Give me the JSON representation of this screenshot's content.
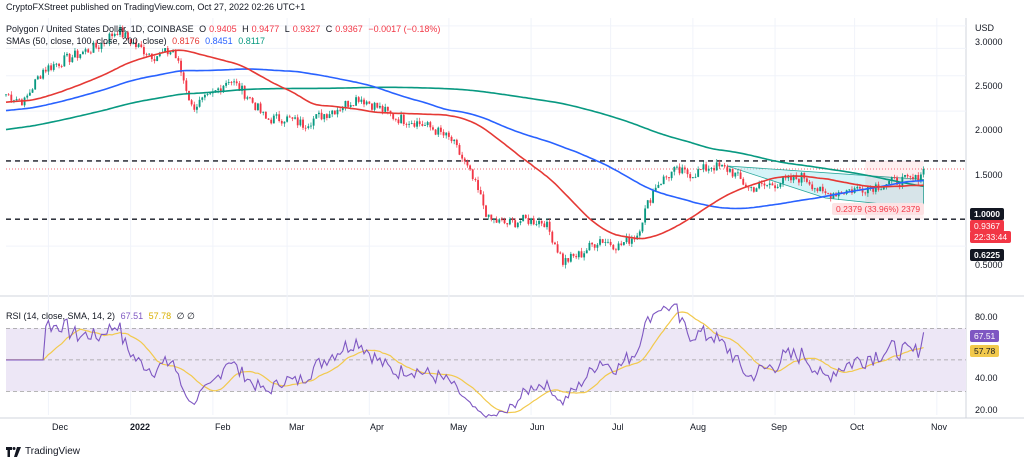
{
  "publisher_line": "CryptoFXStreet published on TradingView.com, Oct 27, 2022 02:26 UTC+1",
  "header": {
    "symbol_line": "Polygon / United States Dollar, 1D, COINBASE",
    "ohlc": {
      "open_label": "O",
      "open": "0.9405",
      "high_label": "H",
      "high": "0.9477",
      "low_label": "L",
      "low": "0.9327",
      "close_label": "C",
      "close": "0.9367",
      "change": "−0.0017 (−0.18%)"
    },
    "sma_line": "SMAs (50, close, 100, close, 200, close)",
    "sma_values": [
      "0.8176",
      "0.8451",
      "0.8117"
    ],
    "rsi_line": "RSI (14, close, SMA, 14, 2)",
    "rsi_values": [
      "67.51",
      "57.78"
    ],
    "rsi_tail": "∅ ∅"
  },
  "currency": "USD",
  "price_axis_labels": [
    "3.0000",
    "2.5000",
    "2.0000",
    "1.5000",
    "1.0000",
    "0.5000"
  ],
  "rsi_axis_labels": [
    "80.00",
    "40.00",
    "20.00"
  ],
  "markers": {
    "level_top": "1.0000",
    "price_current": "0.9367",
    "countdown": "22:33:44",
    "level_bottom": "0.6225",
    "measure": "0.2379 (33.96%) 2379",
    "rsi_current": "67.51",
    "rsi_sma_current": "57.78"
  },
  "time_labels": [
    "Dec",
    "2022",
    "Feb",
    "Mar",
    "Apr",
    "May",
    "Jun",
    "Jul",
    "Aug",
    "Sep",
    "Oct",
    "Nov"
  ],
  "footer": {
    "brand": "TradingView"
  },
  "colors": {
    "up": "#089981",
    "down": "#f23645",
    "sma50": "#e53935",
    "sma100": "#2962ff",
    "sma200": "#089981",
    "rsi": "#7e57c2",
    "rsi_sma": "#f2c94c",
    "rsi_band": "#ede7f6",
    "triangle_fill": "#b2ebf2"
  },
  "chart_data": [
    {
      "type": "candlestick",
      "title": "Polygon / United States Dollar, 1D, COINBASE",
      "ylabel": "USD",
      "y_scale": "log",
      "ylim": [
        0.35,
        3.2
      ],
      "x_range": [
        "2021-11-15",
        "2022-11-12"
      ],
      "x_tick_labels": [
        "Dec",
        "2022",
        "Feb",
        "Mar",
        "Apr",
        "May",
        "Jun",
        "Jul",
        "Aug",
        "Sep",
        "Oct",
        "Nov"
      ],
      "grid": true,
      "candles_note": "representative daily closes (approximate)",
      "closes": [
        {
          "date": "2021-11-15",
          "c": 1.72
        },
        {
          "date": "2021-11-22",
          "c": 1.62
        },
        {
          "date": "2021-11-29",
          "c": 2.1
        },
        {
          "date": "2021-12-06",
          "c": 2.25
        },
        {
          "date": "2021-12-13",
          "c": 2.4
        },
        {
          "date": "2021-12-20",
          "c": 2.55
        },
        {
          "date": "2021-12-27",
          "c": 2.9
        },
        {
          "date": "2022-01-03",
          "c": 2.55
        },
        {
          "date": "2022-01-10",
          "c": 2.35
        },
        {
          "date": "2022-01-17",
          "c": 2.45
        },
        {
          "date": "2022-01-24",
          "c": 1.55
        },
        {
          "date": "2022-01-31",
          "c": 1.68
        },
        {
          "date": "2022-02-07",
          "c": 1.95
        },
        {
          "date": "2022-02-14",
          "c": 1.7
        },
        {
          "date": "2022-02-21",
          "c": 1.4
        },
        {
          "date": "2022-02-28",
          "c": 1.42
        },
        {
          "date": "2022-03-07",
          "c": 1.35
        },
        {
          "date": "2022-03-14",
          "c": 1.45
        },
        {
          "date": "2022-03-21",
          "c": 1.55
        },
        {
          "date": "2022-03-28",
          "c": 1.68
        },
        {
          "date": "2022-04-04",
          "c": 1.55
        },
        {
          "date": "2022-04-11",
          "c": 1.42
        },
        {
          "date": "2022-04-18",
          "c": 1.38
        },
        {
          "date": "2022-04-25",
          "c": 1.3
        },
        {
          "date": "2022-05-02",
          "c": 1.18
        },
        {
          "date": "2022-05-09",
          "c": 0.9
        },
        {
          "date": "2022-05-16",
          "c": 0.62
        },
        {
          "date": "2022-05-23",
          "c": 0.6
        },
        {
          "date": "2022-05-30",
          "c": 0.62
        },
        {
          "date": "2022-06-06",
          "c": 0.61
        },
        {
          "date": "2022-06-13",
          "c": 0.44
        },
        {
          "date": "2022-06-20",
          "c": 0.47
        },
        {
          "date": "2022-06-27",
          "c": 0.53
        },
        {
          "date": "2022-07-04",
          "c": 0.5
        },
        {
          "date": "2022-07-11",
          "c": 0.55
        },
        {
          "date": "2022-07-18",
          "c": 0.82
        },
        {
          "date": "2022-07-25",
          "c": 0.92
        },
        {
          "date": "2022-08-01",
          "c": 0.9
        },
        {
          "date": "2022-08-08",
          "c": 0.96
        },
        {
          "date": "2022-08-15",
          "c": 0.93
        },
        {
          "date": "2022-08-22",
          "c": 0.8
        },
        {
          "date": "2022-08-29",
          "c": 0.82
        },
        {
          "date": "2022-09-05",
          "c": 0.85
        },
        {
          "date": "2022-09-12",
          "c": 0.88
        },
        {
          "date": "2022-09-19",
          "c": 0.76
        },
        {
          "date": "2022-09-26",
          "c": 0.78
        },
        {
          "date": "2022-10-03",
          "c": 0.8
        },
        {
          "date": "2022-10-10",
          "c": 0.82
        },
        {
          "date": "2022-10-17",
          "c": 0.85
        },
        {
          "date": "2022-10-24",
          "c": 0.86
        },
        {
          "date": "2022-10-27",
          "c": 0.9367
        }
      ],
      "series": [
        {
          "name": "SMA 50",
          "last": 0.8176
        },
        {
          "name": "SMA 100",
          "last": 0.8451
        },
        {
          "name": "SMA 200",
          "last": 0.8117
        }
      ],
      "horizontal_levels": [
        1.0,
        0.6225
      ]
    },
    {
      "type": "line",
      "title": "RSI (14, close, SMA, 14, 2)",
      "ylim": [
        15,
        88
      ],
      "bands": [
        30,
        70
      ],
      "series": [
        {
          "name": "RSI",
          "last": 67.51
        },
        {
          "name": "SMA",
          "last": 57.78
        }
      ]
    }
  ]
}
